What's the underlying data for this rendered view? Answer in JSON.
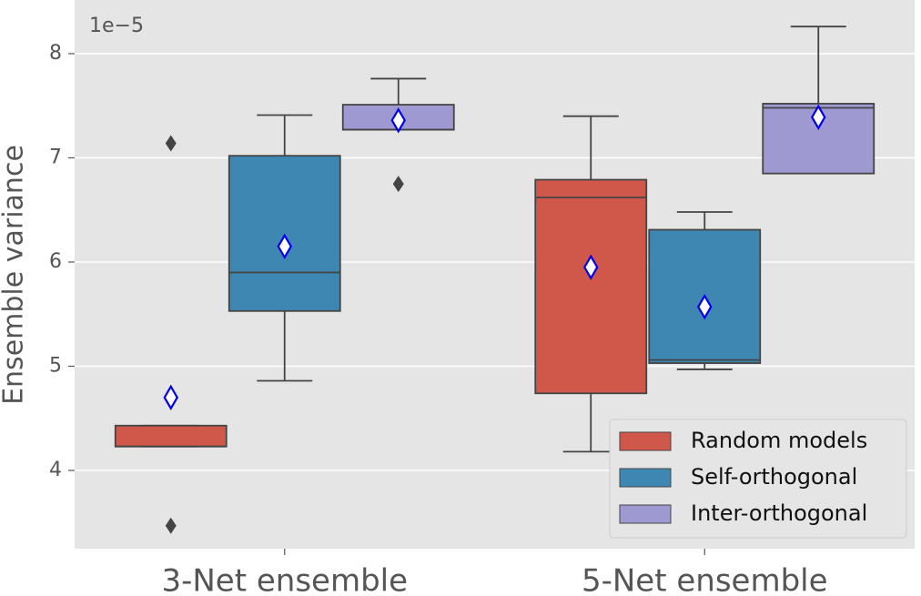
{
  "chart_data": {
    "type": "box",
    "y_label": "Ensemble variance",
    "y_offset_label": "1e−5",
    "categories": [
      "3-Net ensemble",
      "5-Net ensemble"
    ],
    "ylim": [
      3.249,
      8.515
    ],
    "yticks": [
      4,
      5,
      6,
      7,
      8
    ],
    "grid": true,
    "legend_position": "lower right",
    "series": [
      {
        "name": "Random models",
        "color": "#d0584a",
        "boxes": [
          {
            "min": 4.23,
            "q1": 4.23,
            "median": 4.23,
            "q3": 4.43,
            "max": 4.43,
            "mean": 4.7,
            "outliers": [
              7.14,
              3.47
            ]
          },
          {
            "min": 4.18,
            "q1": 4.74,
            "median": 6.62,
            "q3": 6.79,
            "max": 7.4,
            "mean": 5.95,
            "outliers": []
          }
        ]
      },
      {
        "name": "Self-orthogonal",
        "color": "#3f87b3",
        "boxes": [
          {
            "min": 4.86,
            "q1": 5.53,
            "median": 5.9,
            "q3": 7.02,
            "max": 7.41,
            "mean": 6.15,
            "outliers": []
          },
          {
            "min": 4.97,
            "q1": 5.03,
            "median": 5.06,
            "q3": 6.31,
            "max": 6.48,
            "mean": 5.57,
            "outliers": []
          }
        ]
      },
      {
        "name": "Inter-orthogonal",
        "color": "#9e9ad1",
        "boxes": [
          {
            "min": 7.27,
            "q1": 7.27,
            "median": 7.27,
            "q3": 7.51,
            "max": 7.76,
            "mean": 7.36,
            "outliers": [
              6.75
            ]
          },
          {
            "min": 6.85,
            "q1": 6.85,
            "median": 7.48,
            "q3": 7.52,
            "max": 8.26,
            "mean": 7.39,
            "outliers": []
          }
        ]
      }
    ]
  }
}
